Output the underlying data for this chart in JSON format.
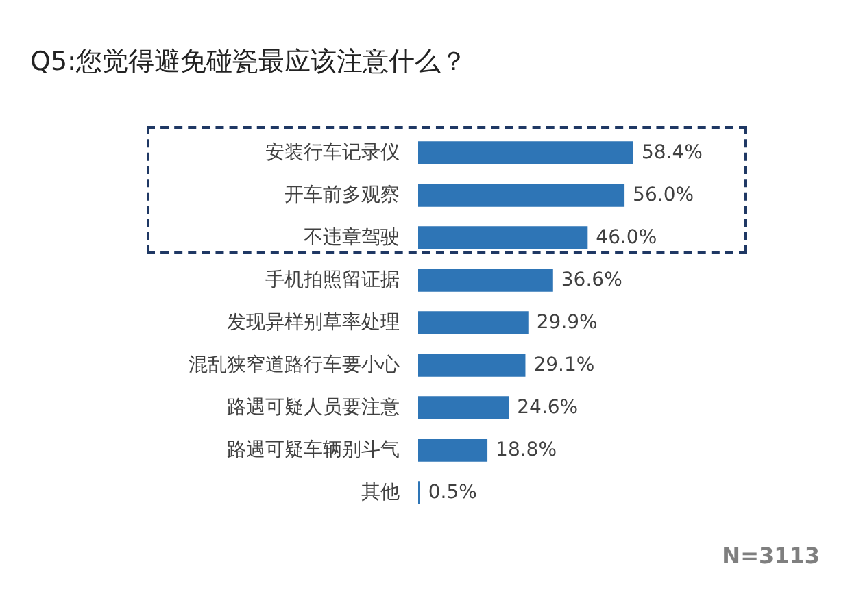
{
  "chart_data": {
    "type": "bar",
    "orientation": "horizontal",
    "title": "Q5:您觉得避免碰瓷最应该注意什么？",
    "categories": [
      "安装行车记录仪",
      "开车前多观察",
      "不违章驾驶",
      "手机拍照留证据",
      "发现异样别草率处理",
      "混乱狭窄道路行车要小心",
      "路遇可疑人员要注意",
      "路遇可疑车辆别斗气",
      "其他"
    ],
    "values": [
      58.4,
      56.0,
      46.0,
      36.6,
      29.9,
      29.1,
      24.6,
      18.8,
      0.5
    ],
    "value_labels": [
      "58.4%",
      "56.0%",
      "46.0%",
      "36.6%",
      "29.9%",
      "29.1%",
      "24.6%",
      "18.8%",
      "0.5%"
    ],
    "color": "#2e75b6",
    "annotations": [
      "N=3113"
    ]
  }
}
